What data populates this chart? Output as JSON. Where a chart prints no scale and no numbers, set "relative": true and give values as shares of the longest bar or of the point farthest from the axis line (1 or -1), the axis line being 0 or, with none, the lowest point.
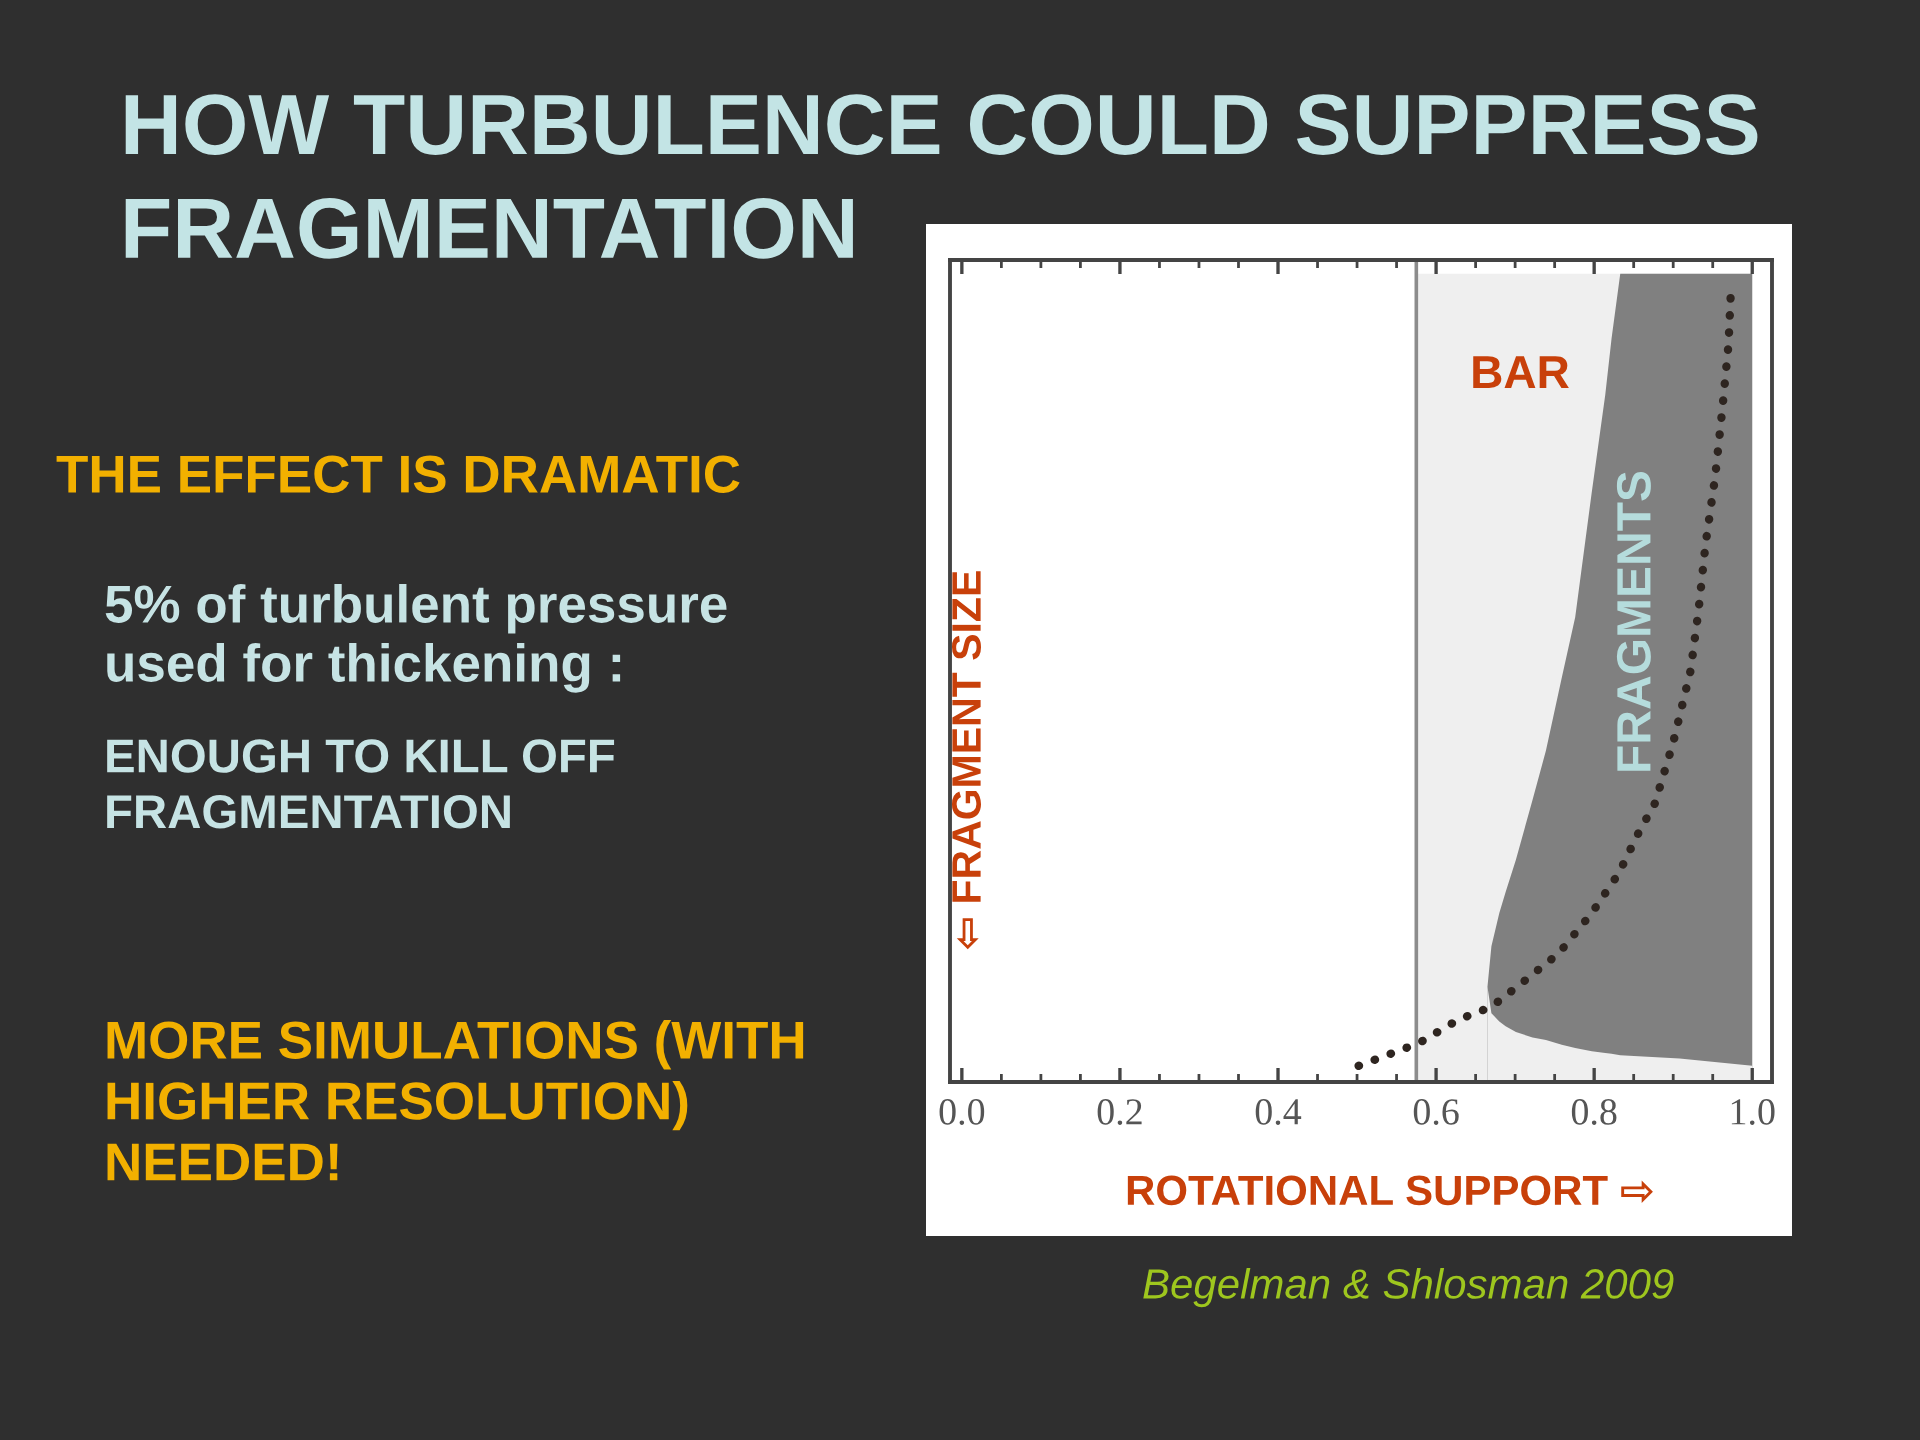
{
  "chart_data": {
    "type": "area",
    "title": "HOW TURBULENCE COULD SUPPRESS FRAGMENTATION",
    "xlabel": "ROTATIONAL SUPPORT ⇨",
    "ylabel": "⇦ FRAGMENT SIZE",
    "relative": true,
    "xlim": [
      -0.015,
      1.025
    ],
    "xticks": [
      {
        "value": 0,
        "label": "0.0"
      },
      {
        "value": 0.05,
        "label": null
      },
      {
        "value": 0.1,
        "label": null
      },
      {
        "value": 0.15,
        "label": null
      },
      {
        "value": 0.2,
        "label": "0.2"
      },
      {
        "value": 0.25,
        "label": null
      },
      {
        "value": 0.3,
        "label": null
      },
      {
        "value": 0.35,
        "label": null
      },
      {
        "value": 0.4,
        "label": "0.4"
      },
      {
        "value": 0.45,
        "label": null
      },
      {
        "value": 0.5,
        "label": null
      },
      {
        "value": 0.55,
        "label": null
      },
      {
        "value": 0.6,
        "label": "0.6"
      },
      {
        "value": 0.65,
        "label": null
      },
      {
        "value": 0.7,
        "label": null
      },
      {
        "value": 0.75,
        "label": null
      },
      {
        "value": 0.8,
        "label": "0.8"
      },
      {
        "value": 0.85,
        "label": null
      },
      {
        "value": 0.9,
        "label": null
      },
      {
        "value": 0.95,
        "label": null
      },
      {
        "value": 1,
        "label": "1.0"
      }
    ],
    "ref_lines": [
      {
        "axis": "x",
        "value": 0.575,
        "color": "#8c8c8c"
      }
    ],
    "series": [
      {
        "color": "#efefef",
        "x": [
          0.575,
          1.0
        ],
        "values": [
          1.0,
          1.0
        ]
      },
      {
        "color": "#808080",
        "x": [
          0.665,
          0.67,
          0.68,
          0.688,
          0.701,
          0.722,
          0.739,
          0.759,
          0.776,
          0.797,
          0.814,
          0.822,
          0.833,
          0.908,
          1.0
        ],
        "values": [
          0.118,
          0.168,
          0.209,
          0.235,
          0.275,
          0.349,
          0.41,
          0.5,
          0.575,
          0.73,
          0.85,
          0.92,
          1.0,
          1.0,
          1.0
        ]
      },
      {
        "color": "#efefef",
        "x": [
          0.665,
          0.67,
          0.68,
          0.688,
          0.701,
          0.722,
          0.739,
          0.759,
          0.776,
          0.797,
          0.814,
          0.822,
          0.833,
          0.908,
          1.0
        ],
        "values": [
          0.118,
          0.085,
          0.075,
          0.069,
          0.062,
          0.055,
          0.052,
          0.046,
          0.042,
          0.038,
          0.036,
          0.035,
          0.033,
          0.029,
          0.02
        ]
      },
      {
        "type": "line",
        "color": "#2e2520",
        "line_style": "dotted",
        "x": [
          0.502,
          0.578,
          0.628,
          0.67,
          0.713,
          0.755,
          0.797,
          0.831,
          0.856,
          0.877,
          0.9,
          0.922,
          0.932,
          0.941,
          0.953,
          0.962,
          0.97,
          0.973
        ],
        "values": [
          0.02,
          0.048,
          0.077,
          0.093,
          0.126,
          0.159,
          0.209,
          0.258,
          0.308,
          0.345,
          0.42,
          0.509,
          0.583,
          0.666,
          0.748,
          0.831,
          0.913,
          0.979
        ]
      }
    ],
    "annotations": [
      "THE EFFECT IS DRAMATIC",
      "5% of turbulent pressure\nused for thickening :",
      "ENOUGH TO KILL OFF\nFRAGMENTATION",
      "MORE SIMULATIONS (WITH\nHIGHER RESOLUTION)\nNEEDED!",
      "BAR",
      "FRAGMENTS",
      "Begelman & Shlosman 2009"
    ]
  }
}
